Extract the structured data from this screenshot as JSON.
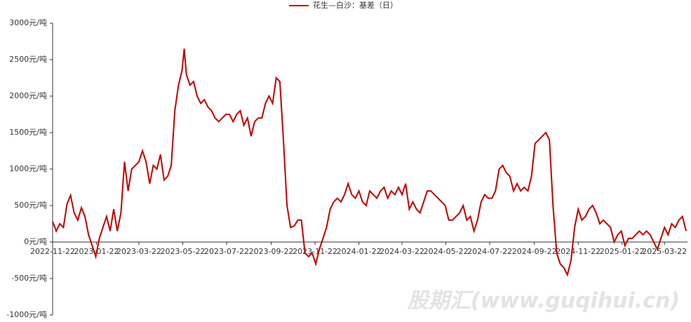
{
  "chart_data": {
    "type": "line",
    "legend": "花生—白沙：基差（日）",
    "watermark": "股期汇(www.guqihui.cn)",
    "xlim": [
      "2022-11-22",
      "2025-04-23"
    ],
    "xticks": [
      "2022-11-22",
      "2023-01-22",
      "2023-03-22",
      "2023-05-22",
      "2023-07-22",
      "2023-09-22",
      "2023-11-22",
      "2024-01-22",
      "2024-03-22",
      "2024-05-22",
      "2024-07-22",
      "2024-09-22",
      "2024-11-22",
      "2025-01-22",
      "2025-03-22"
    ],
    "ylim": [
      -1000,
      3000
    ],
    "yticks": [
      {
        "value": -1000,
        "label": "-1000元/吨"
      },
      {
        "value": -500,
        "label": "-500元/吨"
      },
      {
        "value": 0,
        "label": "0元/吨"
      },
      {
        "value": 500,
        "label": "500元/吨"
      },
      {
        "value": 1000,
        "label": "1000元/吨"
      },
      {
        "value": 1500,
        "label": "1500元/吨"
      },
      {
        "value": 2000,
        "label": "2000元/吨"
      },
      {
        "value": 2500,
        "label": "2500元/吨"
      },
      {
        "value": 3000,
        "label": "3000元/吨"
      }
    ],
    "x": [
      "2022-11-22",
      "2022-11-27",
      "2022-12-02",
      "2022-12-07",
      "2022-12-12",
      "2022-12-17",
      "2022-12-22",
      "2022-12-27",
      "2023-01-01",
      "2023-01-06",
      "2023-01-11",
      "2023-01-16",
      "2023-01-21",
      "2023-01-26",
      "2023-01-31",
      "2023-02-05",
      "2023-02-10",
      "2023-02-15",
      "2023-02-20",
      "2023-02-25",
      "2023-03-02",
      "2023-03-07",
      "2023-03-12",
      "2023-03-17",
      "2023-03-22",
      "2023-03-27",
      "2023-04-01",
      "2023-04-06",
      "2023-04-11",
      "2023-04-16",
      "2023-04-21",
      "2023-04-26",
      "2023-05-01",
      "2023-05-06",
      "2023-05-11",
      "2023-05-16",
      "2023-05-21",
      "2023-05-24",
      "2023-05-27",
      "2023-06-01",
      "2023-06-06",
      "2023-06-11",
      "2023-06-16",
      "2023-06-21",
      "2023-06-26",
      "2023-07-01",
      "2023-07-06",
      "2023-07-11",
      "2023-07-16",
      "2023-07-21",
      "2023-07-26",
      "2023-07-31",
      "2023-08-05",
      "2023-08-10",
      "2023-08-15",
      "2023-08-20",
      "2023-08-25",
      "2023-08-30",
      "2023-09-04",
      "2023-09-09",
      "2023-09-14",
      "2023-09-19",
      "2023-09-24",
      "2023-09-29",
      "2023-10-04",
      "2023-10-09",
      "2023-10-14",
      "2023-10-19",
      "2023-10-24",
      "2023-10-29",
      "2023-11-03",
      "2023-11-08",
      "2023-11-13",
      "2023-11-18",
      "2023-11-23",
      "2023-11-28",
      "2023-12-03",
      "2023-12-08",
      "2023-12-13",
      "2023-12-18",
      "2023-12-23",
      "2023-12-28",
      "2024-01-02",
      "2024-01-07",
      "2024-01-12",
      "2024-01-17",
      "2024-01-22",
      "2024-01-27",
      "2024-02-01",
      "2024-02-06",
      "2024-02-11",
      "2024-02-16",
      "2024-02-21",
      "2024-02-26",
      "2024-03-02",
      "2024-03-07",
      "2024-03-12",
      "2024-03-17",
      "2024-03-22",
      "2024-03-27",
      "2024-04-01",
      "2024-04-06",
      "2024-04-11",
      "2024-04-16",
      "2024-04-21",
      "2024-04-26",
      "2024-05-01",
      "2024-05-06",
      "2024-05-11",
      "2024-05-16",
      "2024-05-21",
      "2024-05-26",
      "2024-05-31",
      "2024-06-05",
      "2024-06-10",
      "2024-06-15",
      "2024-06-20",
      "2024-06-25",
      "2024-06-30",
      "2024-07-05",
      "2024-07-10",
      "2024-07-15",
      "2024-07-20",
      "2024-07-25",
      "2024-07-30",
      "2024-08-04",
      "2024-08-09",
      "2024-08-14",
      "2024-08-19",
      "2024-08-24",
      "2024-08-29",
      "2024-09-03",
      "2024-09-08",
      "2024-09-13",
      "2024-09-18",
      "2024-09-23",
      "2024-09-28",
      "2024-10-03",
      "2024-10-08",
      "2024-10-13",
      "2024-10-18",
      "2024-10-23",
      "2024-10-28",
      "2024-11-02",
      "2024-11-07",
      "2024-11-12",
      "2024-11-17",
      "2024-11-22",
      "2024-11-27",
      "2024-12-02",
      "2024-12-07",
      "2024-12-12",
      "2024-12-17",
      "2024-12-22",
      "2024-12-27",
      "2025-01-01",
      "2025-01-06",
      "2025-01-11",
      "2025-01-16",
      "2025-01-21",
      "2025-01-26",
      "2025-01-31",
      "2025-02-05",
      "2025-02-10",
      "2025-02-15",
      "2025-02-20",
      "2025-02-25",
      "2025-03-02",
      "2025-03-07",
      "2025-03-12",
      "2025-03-17",
      "2025-03-22",
      "2025-03-27",
      "2025-04-01",
      "2025-04-06",
      "2025-04-11",
      "2025-04-16",
      "2025-04-21"
    ],
    "series": [
      {
        "name": "花生—白沙：基差（日）",
        "color": "#c00000",
        "values": [
          280,
          150,
          250,
          200,
          520,
          640,
          400,
          300,
          470,
          350,
          100,
          -50,
          -200,
          50,
          200,
          350,
          150,
          450,
          150,
          400,
          1100,
          700,
          1000,
          1050,
          1100,
          1250,
          1100,
          800,
          1050,
          1000,
          1200,
          850,
          900,
          1050,
          1800,
          2150,
          2350,
          2650,
          2300,
          2150,
          2200,
          2000,
          1900,
          1950,
          1850,
          1800,
          1700,
          1650,
          1700,
          1750,
          1750,
          1650,
          1750,
          1800,
          1600,
          1700,
          1450,
          1650,
          1700,
          1700,
          1900,
          2000,
          1900,
          2250,
          2200,
          1400,
          500,
          200,
          220,
          300,
          300,
          -150,
          -200,
          -150,
          -300,
          -100,
          50,
          200,
          450,
          550,
          600,
          550,
          650,
          800,
          650,
          600,
          700,
          550,
          500,
          700,
          650,
          600,
          700,
          750,
          600,
          700,
          650,
          750,
          650,
          800,
          450,
          550,
          450,
          400,
          550,
          700,
          700,
          650,
          600,
          550,
          500,
          300,
          300,
          350,
          400,
          500,
          300,
          350,
          150,
          300,
          550,
          650,
          600,
          600,
          700,
          1000,
          1050,
          950,
          900,
          700,
          800,
          700,
          750,
          700,
          900,
          1350,
          1400,
          1450,
          1500,
          1400,
          500,
          -150,
          -300,
          -350,
          -450,
          -250,
          200,
          450,
          300,
          350,
          450,
          500,
          400,
          250,
          300,
          250,
          200,
          0,
          100,
          150,
          -50,
          50,
          50,
          100,
          150,
          100,
          150,
          100,
          0,
          -100,
          50,
          200,
          100,
          250,
          200,
          300,
          350,
          150
        ]
      }
    ]
  }
}
